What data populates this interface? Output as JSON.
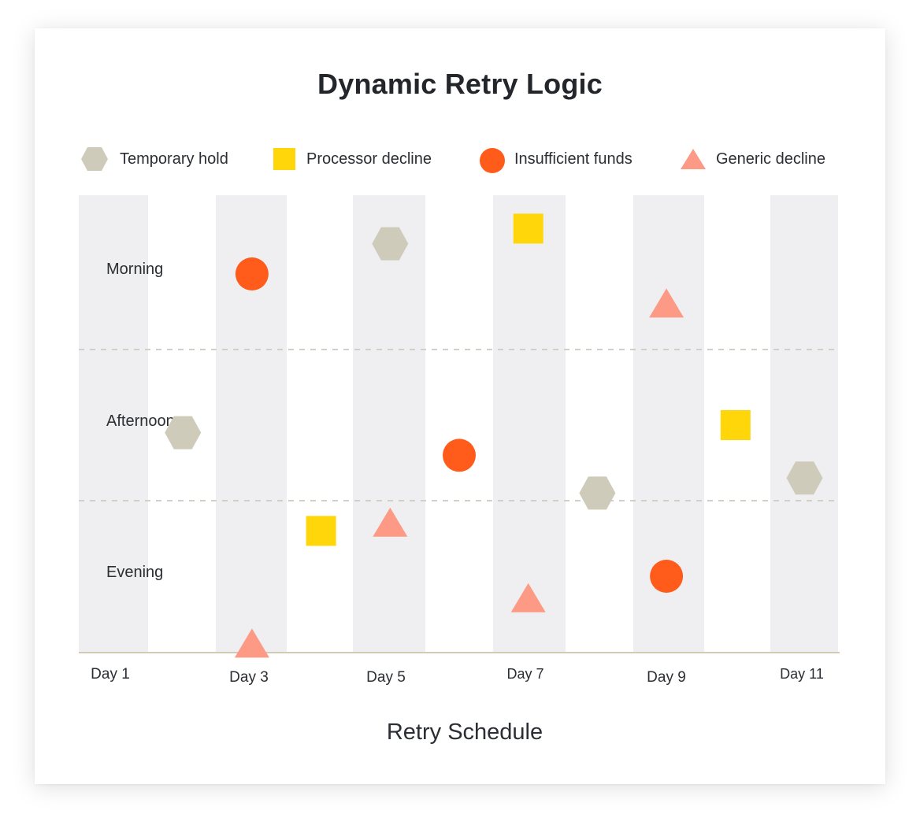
{
  "chart_data": {
    "type": "scatter",
    "title": "Dynamic Retry Logic",
    "xlabel": "Retry Schedule",
    "ylabel": "",
    "y_categories": [
      "Morning",
      "Afternoon",
      "Evening"
    ],
    "x_tick_labels": [
      "Day 1",
      "Day 3",
      "Day 5",
      "Day 7",
      "Day 9",
      "Day 11"
    ],
    "xlim": [
      0.5,
      11.5
    ],
    "grid": "dashed horizontal separators between time-of-day rows; alternating shaded day columns",
    "legend_placement": "top",
    "series": [
      {
        "name": "Temporary hold",
        "marker": "hexagon",
        "color": "#cfcbba",
        "points": [
          {
            "x": 2,
            "y": 1.55
          },
          {
            "x": 5,
            "y": 0.3
          },
          {
            "x": 8,
            "y": 1.95
          },
          {
            "x": 11,
            "y": 1.85
          }
        ]
      },
      {
        "name": "Processor decline",
        "marker": "square",
        "color": "#ffd60a",
        "points": [
          {
            "x": 4,
            "y": 2.2
          },
          {
            "x": 7,
            "y": 0.2
          },
          {
            "x": 10,
            "y": 1.5
          }
        ]
      },
      {
        "name": "Insufficient funds",
        "marker": "circle",
        "color": "#ff5b1a",
        "points": [
          {
            "x": 3,
            "y": 0.5
          },
          {
            "x": 6,
            "y": 1.7
          },
          {
            "x": 9,
            "y": 2.5
          }
        ]
      },
      {
        "name": "Generic decline",
        "marker": "triangle",
        "color": "#fd9a85",
        "points": [
          {
            "x": 3,
            "y": 2.95
          },
          {
            "x": 5,
            "y": 2.15
          },
          {
            "x": 7,
            "y": 2.65
          },
          {
            "x": 9,
            "y": 0.7
          }
        ]
      }
    ]
  },
  "style": {
    "band_color": "#efeff1",
    "axis_color": "#cfcbb5",
    "gridline_color": "#d2d0c6"
  }
}
